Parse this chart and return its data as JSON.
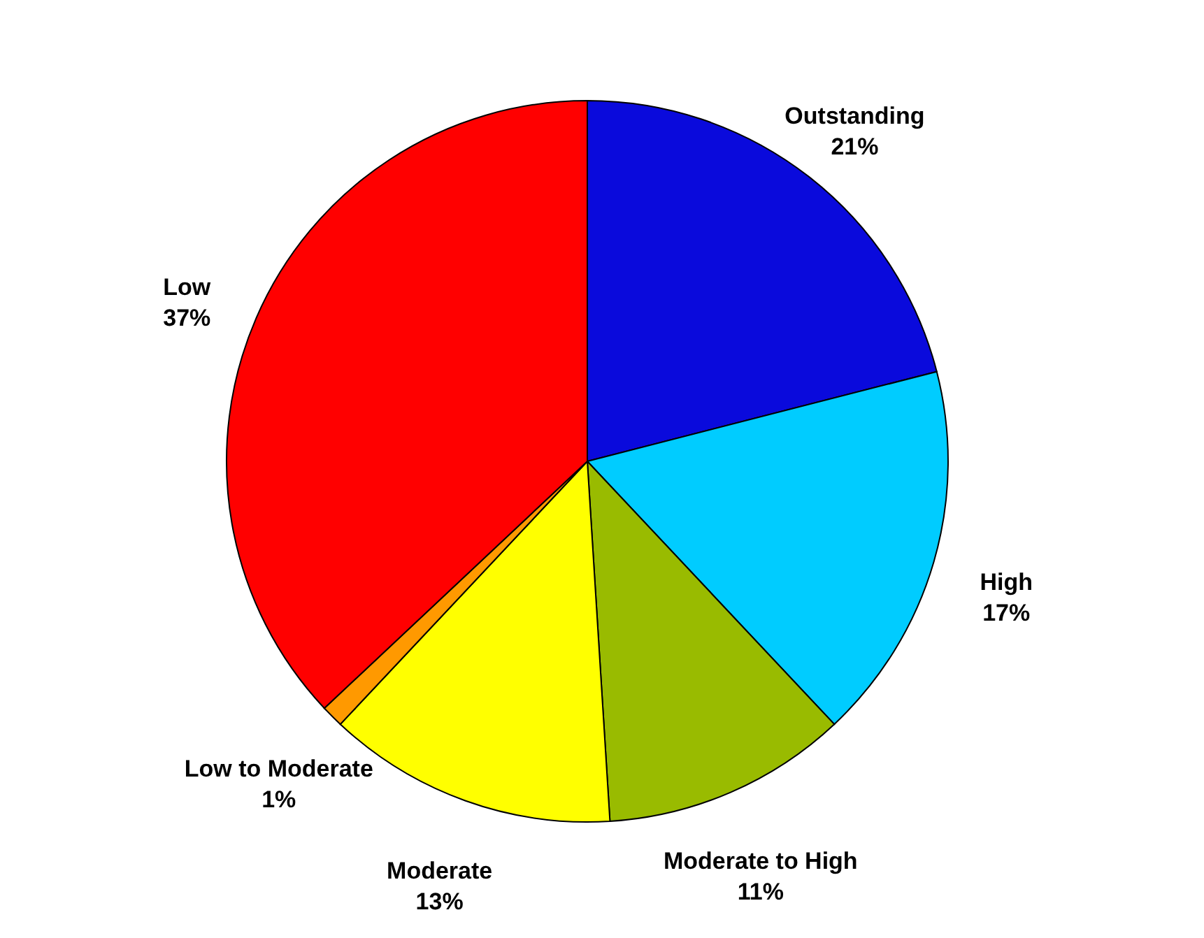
{
  "chart_data": {
    "type": "pie",
    "categories": [
      "Outstanding",
      "High",
      "Moderate to High",
      "Moderate",
      "Low to Moderate",
      "Low"
    ],
    "values": [
      21,
      17,
      11,
      13,
      1,
      37
    ],
    "value_labels": [
      "21%",
      "17%",
      "11%",
      "13%",
      "1%",
      "37%"
    ],
    "colors": [
      "#0a0adc",
      "#00ccff",
      "#99bb00",
      "#ffff00",
      "#ff9900",
      "#ff0000"
    ],
    "legend": false
  }
}
